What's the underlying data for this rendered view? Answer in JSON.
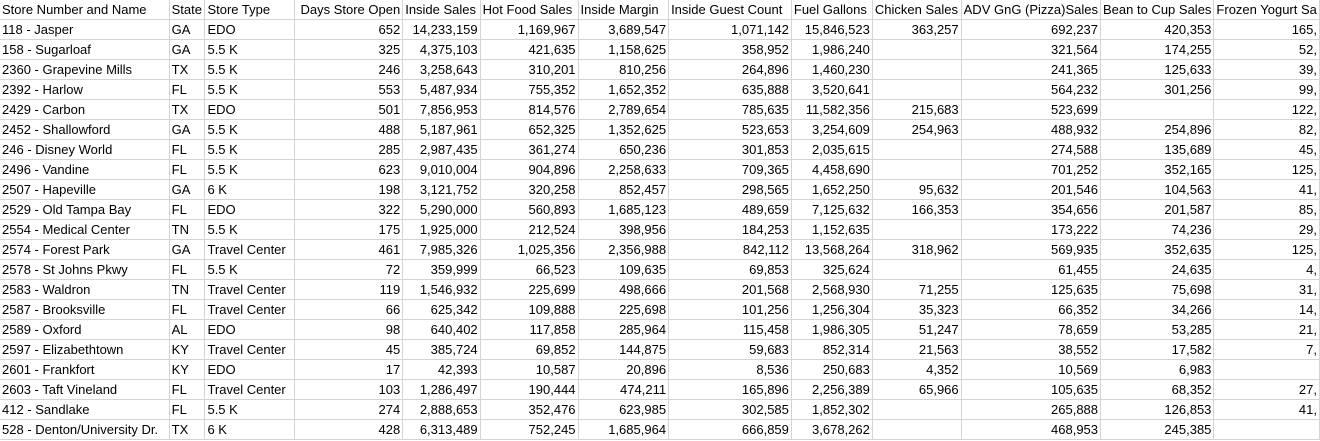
{
  "columns": [
    {
      "label": "Store Number and Name",
      "align": "l"
    },
    {
      "label": "State",
      "align": "l"
    },
    {
      "label": "Store Type",
      "align": "l"
    },
    {
      "label": "Days Store Open",
      "align": "r"
    },
    {
      "label": "Inside Sales",
      "align": "r"
    },
    {
      "label": "Hot Food Sales",
      "align": "r"
    },
    {
      "label": "Inside Margin",
      "align": "r"
    },
    {
      "label": "Inside Guest Count",
      "align": "r"
    },
    {
      "label": "Fuel Gallons",
      "align": "r"
    },
    {
      "label": "Chicken Sales",
      "align": "r"
    },
    {
      "label": "ADV GnG (Pizza)Sales",
      "align": "r"
    },
    {
      "label": "Bean to Cup Sales",
      "align": "r"
    },
    {
      "label": "Frozen Yogurt Sa",
      "align": "r"
    }
  ],
  "rows": [
    [
      "118 - Jasper",
      "GA",
      "EDO",
      "652",
      "14,233,159",
      "1,169,967",
      "3,689,547",
      "1,071,142",
      "15,846,523",
      "363,257",
      "692,237",
      "420,353",
      "165,"
    ],
    [
      "158 - Sugarloaf",
      "GA",
      "5.5 K",
      "325",
      "4,375,103",
      "421,635",
      "1,158,625",
      "358,952",
      "1,986,240",
      "",
      "321,564",
      "174,255",
      "52,"
    ],
    [
      "2360 - Grapevine Mills",
      "TX",
      "5.5 K",
      "246",
      "3,258,643",
      "310,201",
      "810,256",
      "264,896",
      "1,460,230",
      "",
      "241,365",
      "125,633",
      "39,"
    ],
    [
      "2392 - Harlow",
      "FL",
      "5.5 K",
      "553",
      "5,487,934",
      "755,352",
      "1,652,352",
      "635,888",
      "3,520,641",
      "",
      "564,232",
      "301,256",
      "99,"
    ],
    [
      "2429 - Carbon",
      "TX",
      "EDO",
      "501",
      "7,856,953",
      "814,576",
      "2,789,654",
      "785,635",
      "11,582,356",
      "215,683",
      "523,699",
      "",
      "122,"
    ],
    [
      "2452 - Shallowford",
      "GA",
      "5.5 K",
      "488",
      "5,187,961",
      "652,325",
      "1,352,625",
      "523,653",
      "3,254,609",
      "254,963",
      "488,932",
      "254,896",
      "82,"
    ],
    [
      "246 - Disney World",
      "FL",
      "5.5 K",
      "285",
      "2,987,435",
      "361,274",
      "650,236",
      "301,853",
      "2,035,615",
      "",
      "274,588",
      "135,689",
      "45,"
    ],
    [
      "2496 - Vandine",
      "FL",
      "5.5 K",
      "623",
      "9,010,004",
      "904,896",
      "2,258,633",
      "709,365",
      "4,458,690",
      "",
      "701,252",
      "352,165",
      "125,"
    ],
    [
      "2507 - Hapeville",
      "GA",
      "6 K",
      "198",
      "3,121,752",
      "320,258",
      "852,457",
      "298,565",
      "1,652,250",
      "95,632",
      "201,546",
      "104,563",
      "41,"
    ],
    [
      "2529 - Old Tampa Bay",
      "FL",
      "EDO",
      "322",
      "5,290,000",
      "560,893",
      "1,685,123",
      "489,659",
      "7,125,632",
      "166,353",
      "354,656",
      "201,587",
      "85,"
    ],
    [
      "2554 - Medical Center",
      "TN",
      "5.5 K",
      "175",
      "1,925,000",
      "212,524",
      "398,956",
      "184,253",
      "1,152,635",
      "",
      "173,222",
      "74,236",
      "29,"
    ],
    [
      "2574 - Forest Park",
      "GA",
      "Travel Center",
      "461",
      "7,985,326",
      "1,025,356",
      "2,356,988",
      "842,112",
      "13,568,264",
      "318,962",
      "569,935",
      "352,635",
      "125,"
    ],
    [
      "2578 - St Johns Pkwy",
      "FL",
      "5.5 K",
      "72",
      "359,999",
      "66,523",
      "109,635",
      "69,853",
      "325,624",
      "",
      "61,455",
      "24,635",
      "4,"
    ],
    [
      "2583 - Waldron",
      "TN",
      "Travel Center",
      "119",
      "1,546,932",
      "225,699",
      "498,666",
      "201,568",
      "2,568,930",
      "71,255",
      "125,635",
      "75,698",
      "31,"
    ],
    [
      "2587 - Brooksville",
      "FL",
      "Travel Center",
      "66",
      "625,342",
      "109,888",
      "225,698",
      "101,256",
      "1,256,304",
      "35,323",
      "66,352",
      "34,266",
      "14,"
    ],
    [
      "2589 - Oxford",
      "AL",
      "EDO",
      "98",
      "640,402",
      "117,858",
      "285,964",
      "115,458",
      "1,986,305",
      "51,247",
      "78,659",
      "53,285",
      "21,"
    ],
    [
      "2597 - Elizabethtown",
      "KY",
      "Travel Center",
      "45",
      "385,724",
      "69,852",
      "144,875",
      "59,683",
      "852,314",
      "21,563",
      "38,552",
      "17,582",
      "7,"
    ],
    [
      "2601 - Frankfort",
      "KY",
      "EDO",
      "17",
      "42,393",
      "10,587",
      "20,896",
      "8,536",
      "250,683",
      "4,352",
      "10,569",
      "6,983",
      ""
    ],
    [
      "2603 - Taft Vineland",
      "FL",
      "Travel Center",
      "103",
      "1,286,497",
      "190,444",
      "474,211",
      "165,896",
      "2,256,389",
      "65,966",
      "105,635",
      "68,352",
      "27,"
    ],
    [
      "412 - Sandlake",
      "FL",
      "5.5 K",
      "274",
      "2,888,653",
      "352,476",
      "623,985",
      "302,585",
      "1,852,302",
      "",
      "265,888",
      "126,853",
      "41,"
    ],
    [
      "528 - Denton/University Dr.",
      "TX",
      "6 K",
      "428",
      "6,313,489",
      "752,245",
      "1,685,964",
      "666,859",
      "3,678,262",
      "",
      "468,953",
      "245,385",
      ""
    ]
  ]
}
